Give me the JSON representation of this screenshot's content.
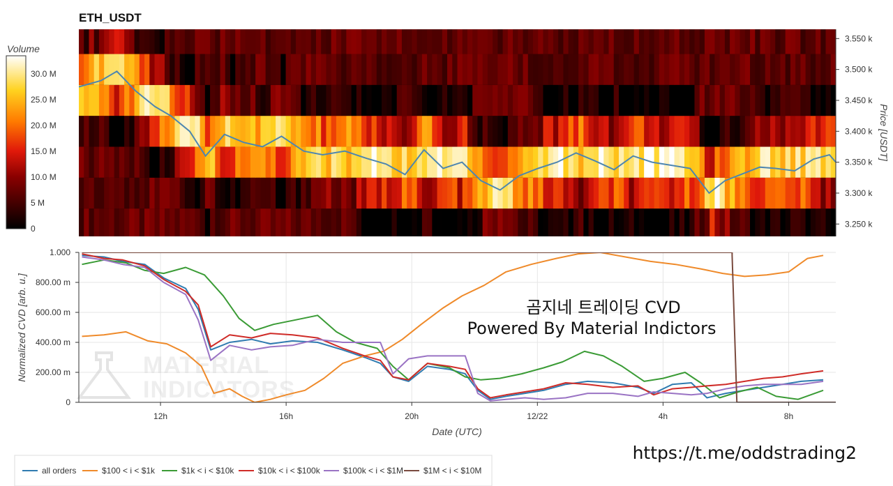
{
  "header": {
    "symbol": "ETH_USDT"
  },
  "overlay": {
    "line1": "곰지네 트레이딩 CVD",
    "line2": "Powered By Material Indictors",
    "link": "https://t.me/oddstrading2"
  },
  "watermark": {
    "line1": "MATERIAL",
    "line2": "INDICATORS"
  },
  "colors": {
    "all_orders": "#2f7bb0",
    "r100_1k": "#ef8a2a",
    "r1k_10k": "#3a9b35",
    "r10k_100k": "#cf2b27",
    "r100k_1m": "#9a73c4",
    "r1m_10m": "#7a4a3e",
    "price_line": "#4d86b0"
  },
  "chart_data": [
    {
      "type": "heatmap",
      "title": "ETH_USDT",
      "ylabel": "Price [USDT]",
      "y_ticks": [
        "3.250 k",
        "3.300 k",
        "3.350 k",
        "3.400 k",
        "3.450 k",
        "3.500 k",
        "3.550 k"
      ],
      "y_tick_values": [
        3250,
        3300,
        3350,
        3400,
        3450,
        3500,
        3550
      ],
      "ylim": [
        3230,
        3565
      ],
      "xlim": [
        9.6,
        33.5
      ],
      "price_levels": [
        3250,
        3300,
        3350,
        3400,
        3450,
        3500,
        3550
      ],
      "colorbar": {
        "label": "Volume",
        "ticks": [
          "0",
          "5 M",
          "10.0 M",
          "15.0 M",
          "20.0 M",
          "25.0 M",
          "30.0 M"
        ],
        "tick_values": [
          0,
          5,
          10,
          15,
          20,
          25,
          30
        ],
        "range": [
          0,
          33.5
        ]
      },
      "price_series": {
        "name": "",
        "x": [
          9.6,
          10.3,
          10.8,
          11.4,
          12.0,
          12.5,
          13.1,
          13.6,
          14.2,
          14.8,
          15.4,
          16.0,
          16.7,
          17.3,
          18.0,
          18.7,
          19.3,
          19.9,
          20.5,
          21.1,
          21.7,
          22.3,
          22.9,
          23.5,
          24.1,
          24.7,
          25.3,
          25.9,
          26.5,
          27.1,
          27.7,
          28.3,
          28.9,
          29.5,
          30.0,
          30.5,
          31.1,
          31.6,
          32.2,
          32.8,
          33.3,
          33.5
        ],
        "values": [
          3472,
          3482,
          3497,
          3465,
          3440,
          3425,
          3400,
          3360,
          3395,
          3382,
          3375,
          3392,
          3368,
          3362,
          3368,
          3356,
          3347,
          3330,
          3370,
          3340,
          3350,
          3320,
          3305,
          3328,
          3340,
          3350,
          3365,
          3352,
          3338,
          3360,
          3350,
          3345,
          3340,
          3300,
          3320,
          3330,
          3342,
          3340,
          3336,
          3355,
          3362,
          3350
        ]
      }
    },
    {
      "type": "line",
      "xlabel": "Date (UTC)",
      "ylabel": "Normalized CVD [arb. u.]",
      "x_ticks": [
        "12h",
        "16h",
        "20h",
        "12/22",
        "4h",
        "8h"
      ],
      "x_tick_values": [
        12,
        16,
        20,
        24,
        28,
        32
      ],
      "y_ticks": [
        "0",
        "200.00 m",
        "400.00 m",
        "600.00 m",
        "800.00 m",
        "1.000"
      ],
      "y_tick_values": [
        0,
        0.2,
        0.4,
        0.6,
        0.8,
        1.0
      ],
      "xlim": [
        9.4,
        33.5
      ],
      "ylim": [
        0,
        1.0
      ],
      "series": [
        {
          "name": "all orders",
          "color": "#2f7bb0",
          "x": [
            9.5,
            10.2,
            10.8,
            11.5,
            12.1,
            12.8,
            13.2,
            13.6,
            14.2,
            14.9,
            15.5,
            16.2,
            17.0,
            17.8,
            18.5,
            19.0,
            19.4,
            19.9,
            20.5,
            21.2,
            21.7,
            22.1,
            22.5,
            23.0,
            23.6,
            24.2,
            24.9,
            25.6,
            26.4,
            27.2,
            27.7,
            28.3,
            28.9,
            29.4,
            30.0,
            30.6,
            31.2,
            31.8,
            32.4,
            33.1
          ],
          "values": [
            0.98,
            0.97,
            0.94,
            0.92,
            0.83,
            0.76,
            0.62,
            0.35,
            0.4,
            0.42,
            0.39,
            0.41,
            0.4,
            0.35,
            0.3,
            0.26,
            0.17,
            0.14,
            0.24,
            0.22,
            0.19,
            0.08,
            0.02,
            0.04,
            0.06,
            0.08,
            0.12,
            0.14,
            0.13,
            0.1,
            0.06,
            0.12,
            0.13,
            0.03,
            0.06,
            0.08,
            0.1,
            0.12,
            0.14,
            0.15
          ]
        },
        {
          "name": "$100 < i < $1k",
          "color": "#ef8a2a",
          "x": [
            9.5,
            10.2,
            10.9,
            11.6,
            12.2,
            12.8,
            13.3,
            13.7,
            14.2,
            14.6,
            15.0,
            15.5,
            16.0,
            16.6,
            17.2,
            17.8,
            18.5,
            19.1,
            19.7,
            20.3,
            21.0,
            21.6,
            22.3,
            23.0,
            23.8,
            24.6,
            25.3,
            26.0,
            26.8,
            27.6,
            28.4,
            29.2,
            29.9,
            30.6,
            31.3,
            32.0,
            32.6,
            33.1
          ],
          "values": [
            0.44,
            0.45,
            0.47,
            0.41,
            0.39,
            0.33,
            0.24,
            0.06,
            0.09,
            0.04,
            0.0,
            0.02,
            0.05,
            0.08,
            0.16,
            0.26,
            0.31,
            0.34,
            0.42,
            0.52,
            0.63,
            0.71,
            0.78,
            0.87,
            0.92,
            0.96,
            0.99,
            1.0,
            0.97,
            0.94,
            0.92,
            0.89,
            0.86,
            0.84,
            0.85,
            0.87,
            0.96,
            0.98
          ]
        },
        {
          "name": "$1k < i < $10k",
          "color": "#3a9b35",
          "x": [
            9.5,
            10.2,
            10.9,
            11.5,
            12.1,
            12.8,
            13.4,
            14.0,
            14.5,
            15.0,
            15.6,
            16.3,
            17.0,
            17.6,
            18.2,
            18.9,
            19.4,
            19.9,
            20.5,
            21.2,
            21.7,
            22.2,
            22.8,
            23.5,
            24.2,
            24.8,
            25.5,
            26.1,
            26.7,
            27.4,
            28.0,
            28.7,
            29.2,
            29.8,
            30.4,
            31.0,
            31.6,
            32.3,
            33.1
          ],
          "values": [
            0.92,
            0.95,
            0.93,
            0.88,
            0.86,
            0.9,
            0.85,
            0.71,
            0.56,
            0.48,
            0.52,
            0.55,
            0.58,
            0.47,
            0.4,
            0.36,
            0.24,
            0.15,
            0.26,
            0.23,
            0.17,
            0.15,
            0.16,
            0.19,
            0.23,
            0.27,
            0.34,
            0.31,
            0.24,
            0.14,
            0.16,
            0.2,
            0.13,
            0.03,
            0.07,
            0.1,
            0.04,
            0.02,
            0.08
          ]
        },
        {
          "name": "$10k < i < $100k",
          "color": "#cf2b27",
          "x": [
            9.5,
            10.2,
            10.8,
            11.5,
            12.1,
            12.8,
            13.2,
            13.6,
            14.2,
            14.9,
            15.5,
            16.2,
            17.0,
            17.8,
            18.5,
            19.0,
            19.4,
            19.9,
            20.5,
            21.2,
            21.7,
            22.1,
            22.5,
            23.0,
            23.6,
            24.2,
            24.9,
            25.6,
            26.4,
            27.2,
            27.7,
            28.3,
            28.9,
            29.4,
            30.0,
            30.6,
            31.2,
            31.8,
            32.4,
            33.1
          ],
          "values": [
            0.99,
            0.96,
            0.95,
            0.91,
            0.82,
            0.74,
            0.65,
            0.37,
            0.45,
            0.43,
            0.46,
            0.45,
            0.43,
            0.36,
            0.31,
            0.28,
            0.17,
            0.15,
            0.26,
            0.24,
            0.22,
            0.09,
            0.03,
            0.05,
            0.07,
            0.09,
            0.13,
            0.12,
            0.1,
            0.11,
            0.05,
            0.09,
            0.1,
            0.11,
            0.12,
            0.14,
            0.16,
            0.17,
            0.19,
            0.21
          ]
        },
        {
          "name": "$100k < i < $1M",
          "color": "#9a73c4",
          "x": [
            9.5,
            10.2,
            10.8,
            11.5,
            12.1,
            12.8,
            13.2,
            13.6,
            14.2,
            14.9,
            15.5,
            16.2,
            17.0,
            17.8,
            18.5,
            19.0,
            19.4,
            19.9,
            20.5,
            21.2,
            21.7,
            22.1,
            22.5,
            23.0,
            23.6,
            24.2,
            24.9,
            25.6,
            26.4,
            27.2,
            27.7,
            28.3,
            28.9,
            29.4,
            30.0,
            30.6,
            31.2,
            31.8,
            32.4,
            33.1
          ],
          "values": [
            0.97,
            0.95,
            0.92,
            0.9,
            0.8,
            0.72,
            0.55,
            0.28,
            0.38,
            0.35,
            0.37,
            0.38,
            0.42,
            0.4,
            0.4,
            0.4,
            0.19,
            0.29,
            0.31,
            0.31,
            0.31,
            0.06,
            0.01,
            0.02,
            0.03,
            0.02,
            0.03,
            0.06,
            0.06,
            0.04,
            0.07,
            0.06,
            0.05,
            0.06,
            0.09,
            0.11,
            0.12,
            0.12,
            0.12,
            0.14
          ]
        },
        {
          "name": "$1M < i < $10M",
          "color": "#7a4a3e",
          "x": [
            9.5,
            30.2,
            30.2,
            30.35,
            33.5
          ],
          "values": [
            1.0,
            1.0,
            0.98,
            0.0,
            0.0
          ]
        }
      ],
      "legend_placement": "bottom"
    }
  ]
}
